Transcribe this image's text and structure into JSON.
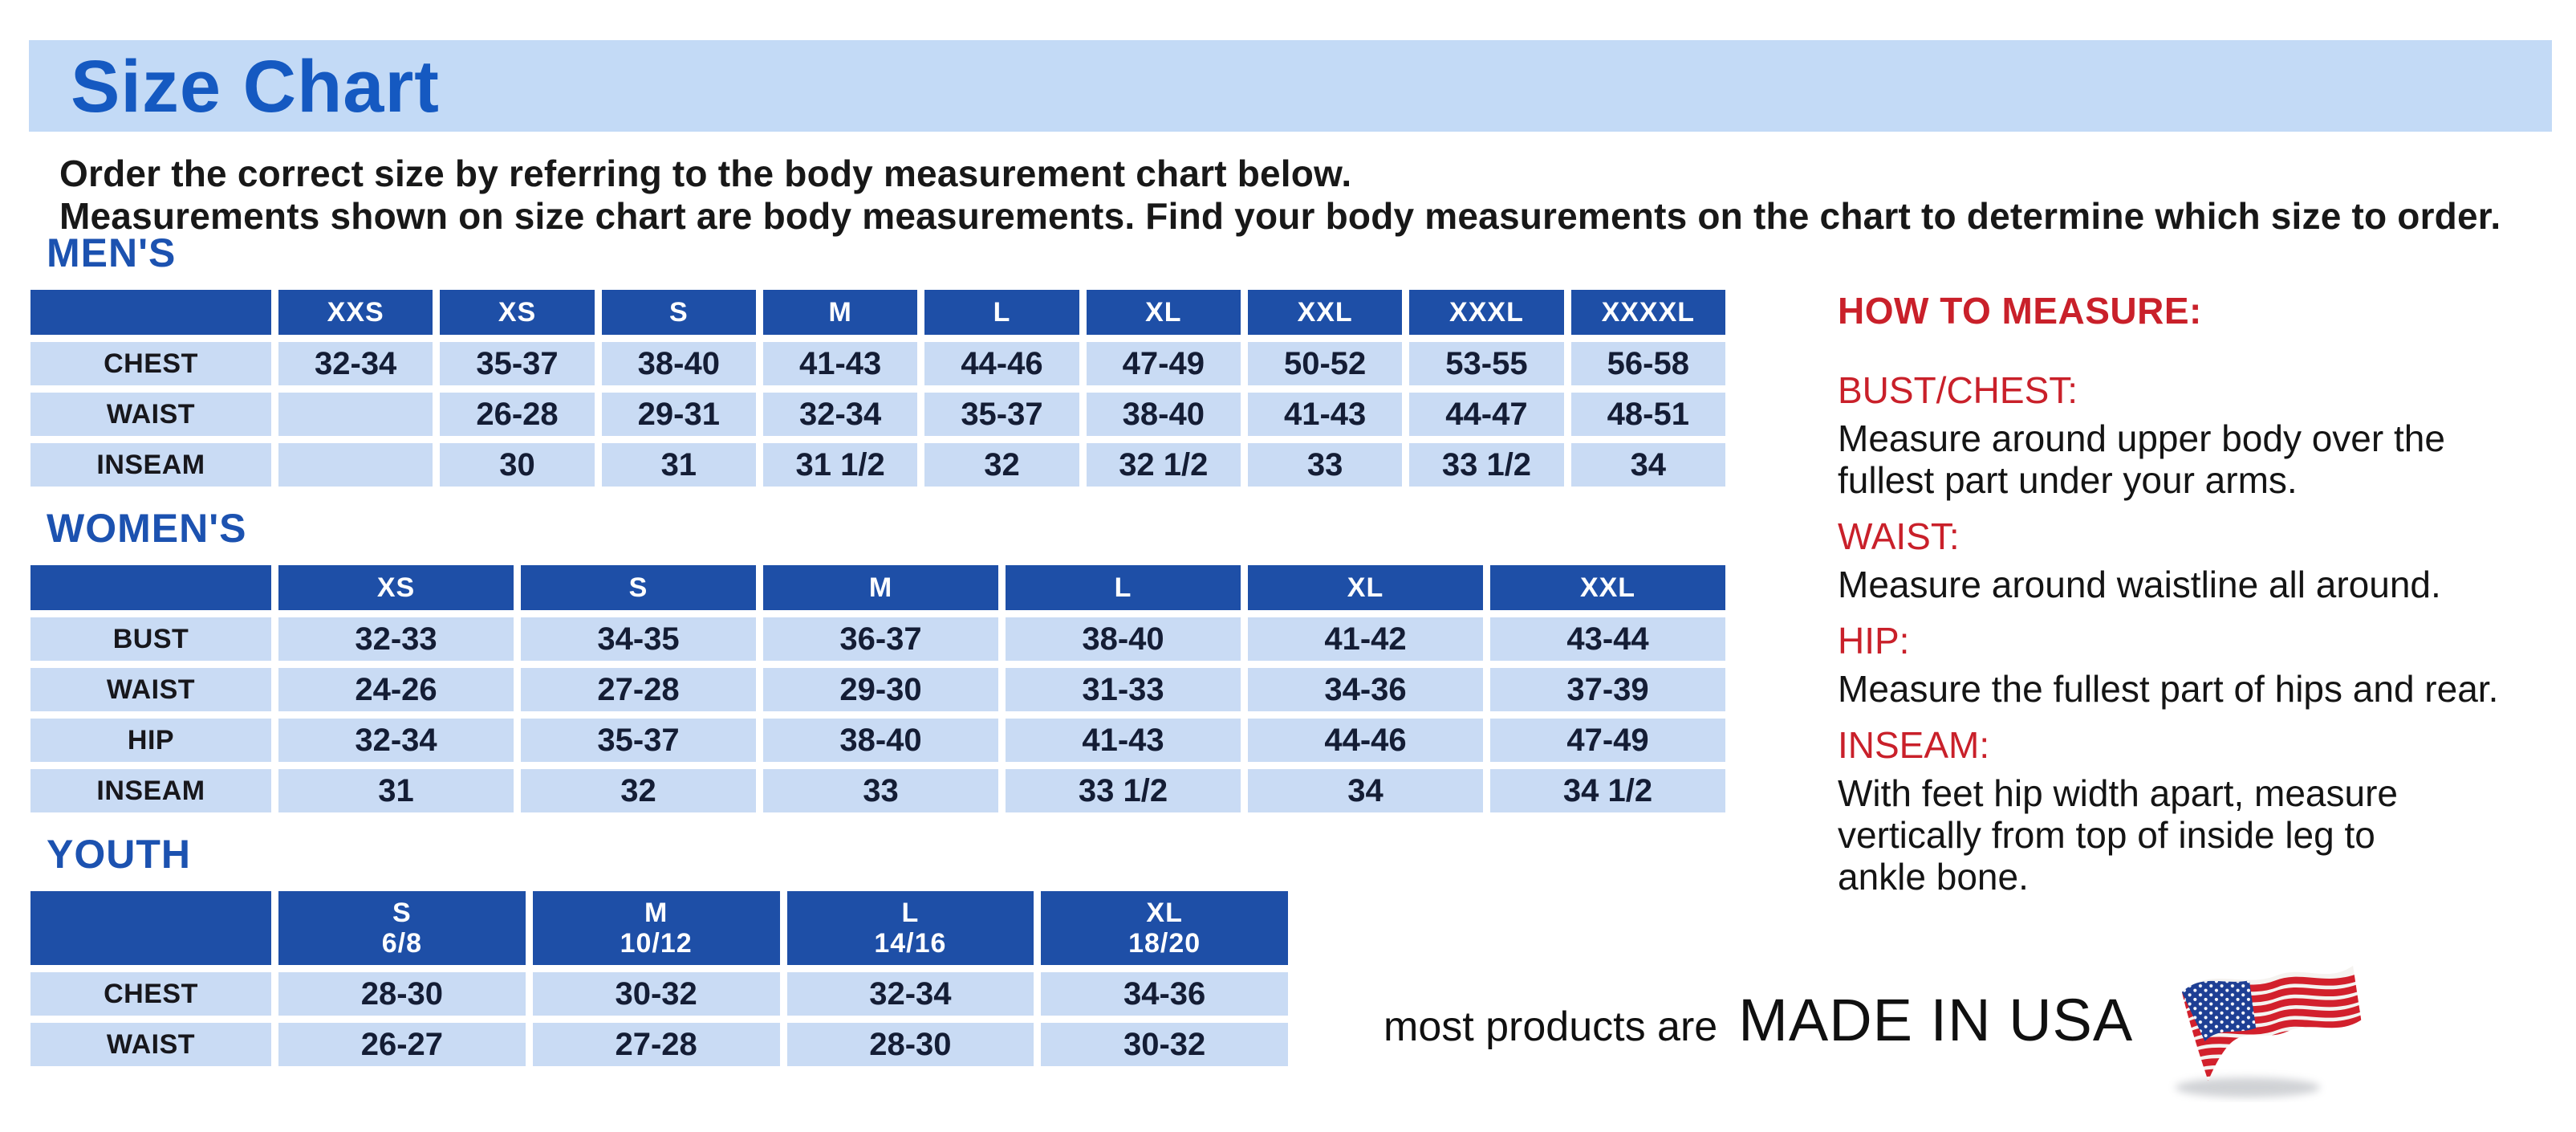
{
  "page": {
    "title": "Size Chart",
    "intro_line1": "Order the correct size by referring to the body measurement chart below.",
    "intro_line2": "Measurements shown on size chart are body measurements.  Find your body measurements on the chart to determine which size to order."
  },
  "tables": {
    "mens": {
      "heading": "MEN'S",
      "columns": [
        "XXS",
        "XS",
        "S",
        "M",
        "L",
        "XL",
        "XXL",
        "XXXL",
        "XXXXL"
      ],
      "rows": [
        {
          "label": "CHEST",
          "values": [
            "32-34",
            "35-37",
            "38-40",
            "41-43",
            "44-46",
            "47-49",
            "50-52",
            "53-55",
            "56-58"
          ]
        },
        {
          "label": "WAIST",
          "values": [
            "",
            "26-28",
            "29-31",
            "32-34",
            "35-37",
            "38-40",
            "41-43",
            "44-47",
            "48-51"
          ]
        },
        {
          "label": "INSEAM",
          "values": [
            "",
            "30",
            "31",
            "31 1/2",
            "32",
            "32 1/2",
            "33",
            "33 1/2",
            "34"
          ]
        }
      ]
    },
    "womens": {
      "heading": "WOMEN'S",
      "columns": [
        "XS",
        "S",
        "M",
        "L",
        "XL",
        "XXL"
      ],
      "rows": [
        {
          "label": "BUST",
          "values": [
            "32-33",
            "34-35",
            "36-37",
            "38-40",
            "41-42",
            "43-44"
          ]
        },
        {
          "label": "WAIST",
          "values": [
            "24-26",
            "27-28",
            "29-30",
            "31-33",
            "34-36",
            "37-39"
          ]
        },
        {
          "label": "HIP",
          "values": [
            "32-34",
            "35-37",
            "38-40",
            "41-43",
            "44-46",
            "47-49"
          ]
        },
        {
          "label": "INSEAM",
          "values": [
            "31",
            "32",
            "33",
            "33 1/2",
            "34",
            "34 1/2"
          ]
        }
      ]
    },
    "youth": {
      "heading": "YOUTH",
      "columns": [
        {
          "size": "S",
          "range": "6/8"
        },
        {
          "size": "M",
          "range": "10/12"
        },
        {
          "size": "L",
          "range": "14/16"
        },
        {
          "size": "XL",
          "range": "18/20"
        }
      ],
      "rows": [
        {
          "label": "CHEST",
          "values": [
            "28-30",
            "30-32",
            "32-34",
            "34-36"
          ]
        },
        {
          "label": "WAIST",
          "values": [
            "26-27",
            "27-28",
            "28-30",
            "30-32"
          ]
        }
      ]
    }
  },
  "how_to_measure": {
    "heading": "HOW TO MEASURE:",
    "sections": [
      {
        "label": "BUST/CHEST:",
        "text": "Measure around upper body over the\nfullest part under your arms."
      },
      {
        "label": "WAIST:",
        "text": "Measure around waistline all around."
      },
      {
        "label": "HIP:",
        "text": "Measure the fullest part of hips and rear."
      },
      {
        "label": "INSEAM:",
        "text": "With feet hip width apart, measure\nvertically from top of inside leg to\nankle bone."
      }
    ]
  },
  "footer": {
    "prefix": "most products are",
    "made_in": "MADE IN USA",
    "flag_icon": "us-flag-icon"
  },
  "colors": {
    "header_blue": "#1e4fa7",
    "cell_blue": "#c9dbf4",
    "banner_blue": "#c3daf6",
    "title_blue": "#1559c1",
    "heading_blue": "#1c52b0",
    "red": "#c9202a",
    "flag_red": "#d2202c",
    "flag_blue": "#1e3f94"
  }
}
